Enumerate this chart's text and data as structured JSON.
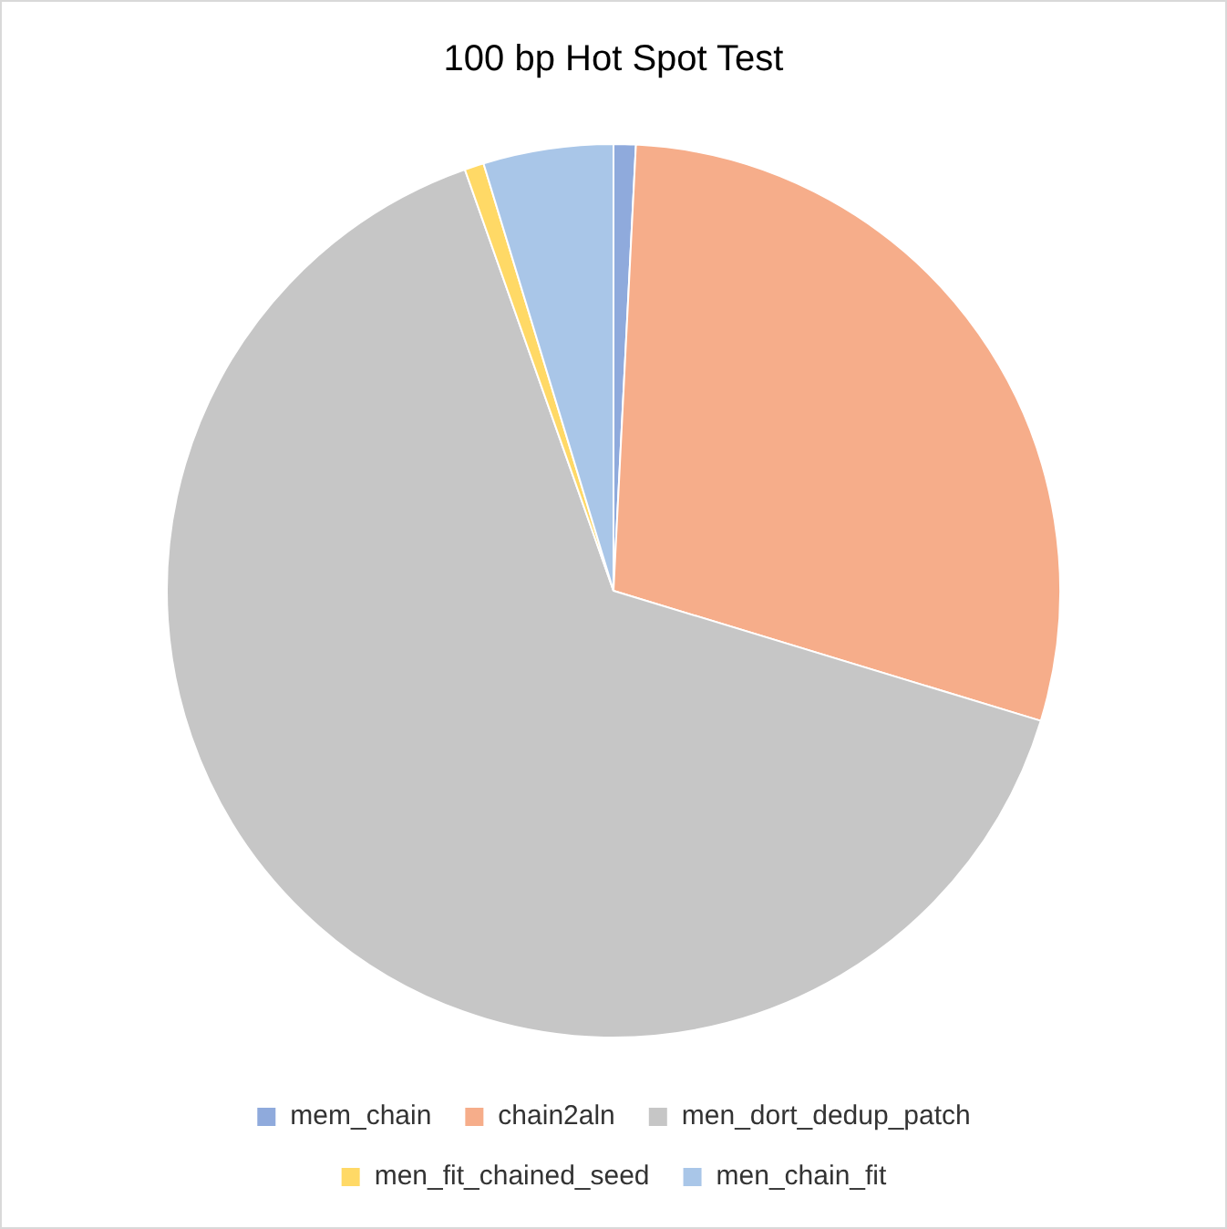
{
  "chart_data": {
    "type": "pie",
    "title": "100 bp Hot Spot Test",
    "categories": [
      "mem_chain",
      "chain2aln",
      "men_dort_dedup_patch",
      "men_fit_chained_seed",
      "men_chain_fit"
    ],
    "values": [
      0.8,
      28.9,
      64.9,
      0.7,
      4.7
    ],
    "colors": [
      "#8faadc",
      "#f6ad8a",
      "#c6c6c6",
      "#ffd966",
      "#a9c6e8"
    ],
    "legend": "bottom"
  }
}
